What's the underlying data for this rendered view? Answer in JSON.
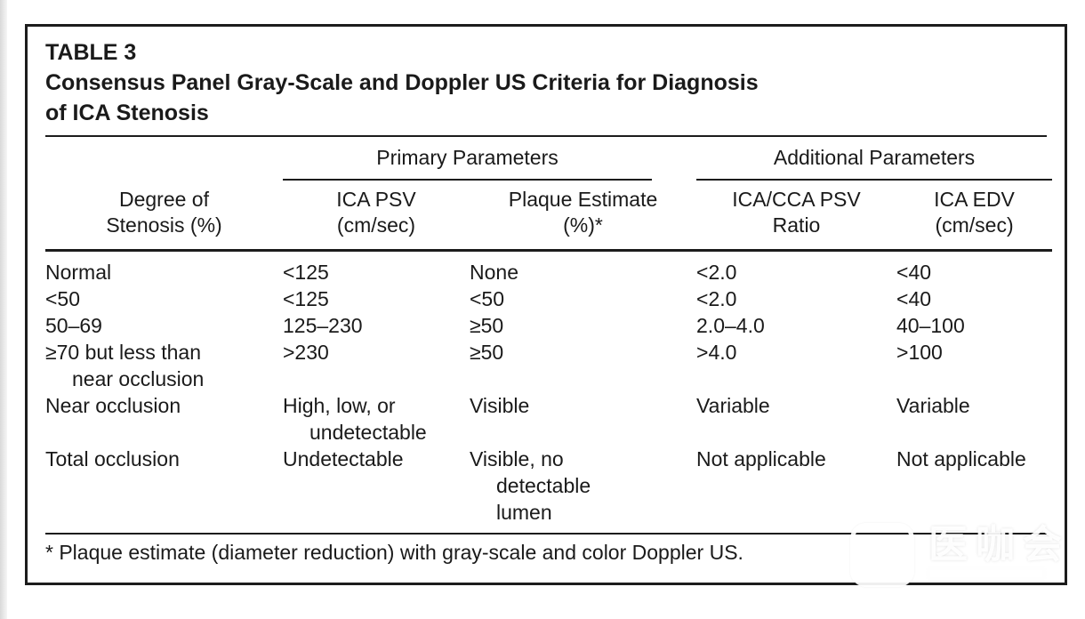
{
  "table": {
    "label": "TABLE 3",
    "title": "Consensus Panel Gray-Scale and Doppler US Criteria for Diagnosis\nof ICA Stenosis",
    "groups": {
      "primary": "Primary Parameters",
      "additional": "Additional Parameters"
    },
    "columns": [
      "Degree of\nStenosis (%)",
      "ICA PSV\n(cm/sec)",
      "Plaque Estimate\n(%)*",
      "ICA/CCA PSV\nRatio",
      "ICA EDV\n(cm/sec)"
    ],
    "rows": [
      [
        "Normal",
        "<125",
        "None",
        "<2.0",
        "<40"
      ],
      [
        "<50",
        "<125",
        "<50",
        "<2.0",
        "<40"
      ],
      [
        "50–69",
        "125–230",
        "≥50",
        "2.0–4.0",
        "40–100"
      ],
      [
        "≥70 but less than\nnear occlusion",
        ">230",
        "≥50",
        ">4.0",
        ">100"
      ],
      [
        "Near occlusion",
        "High, low, or\nundetectable",
        "Visible",
        "Variable",
        "Variable"
      ],
      [
        "Total occlusion",
        "Undetectable",
        "Visible, no\ndetectable\nlumen",
        "Not applicable",
        "Not applicable"
      ]
    ],
    "footnote": "* Plaque estimate (diameter reduction) with gray-scale and color Doppler US."
  },
  "watermark": {
    "brand": "医咖会"
  },
  "colors": {
    "ink": "#1a1a1a",
    "paper": "#ffffff"
  }
}
